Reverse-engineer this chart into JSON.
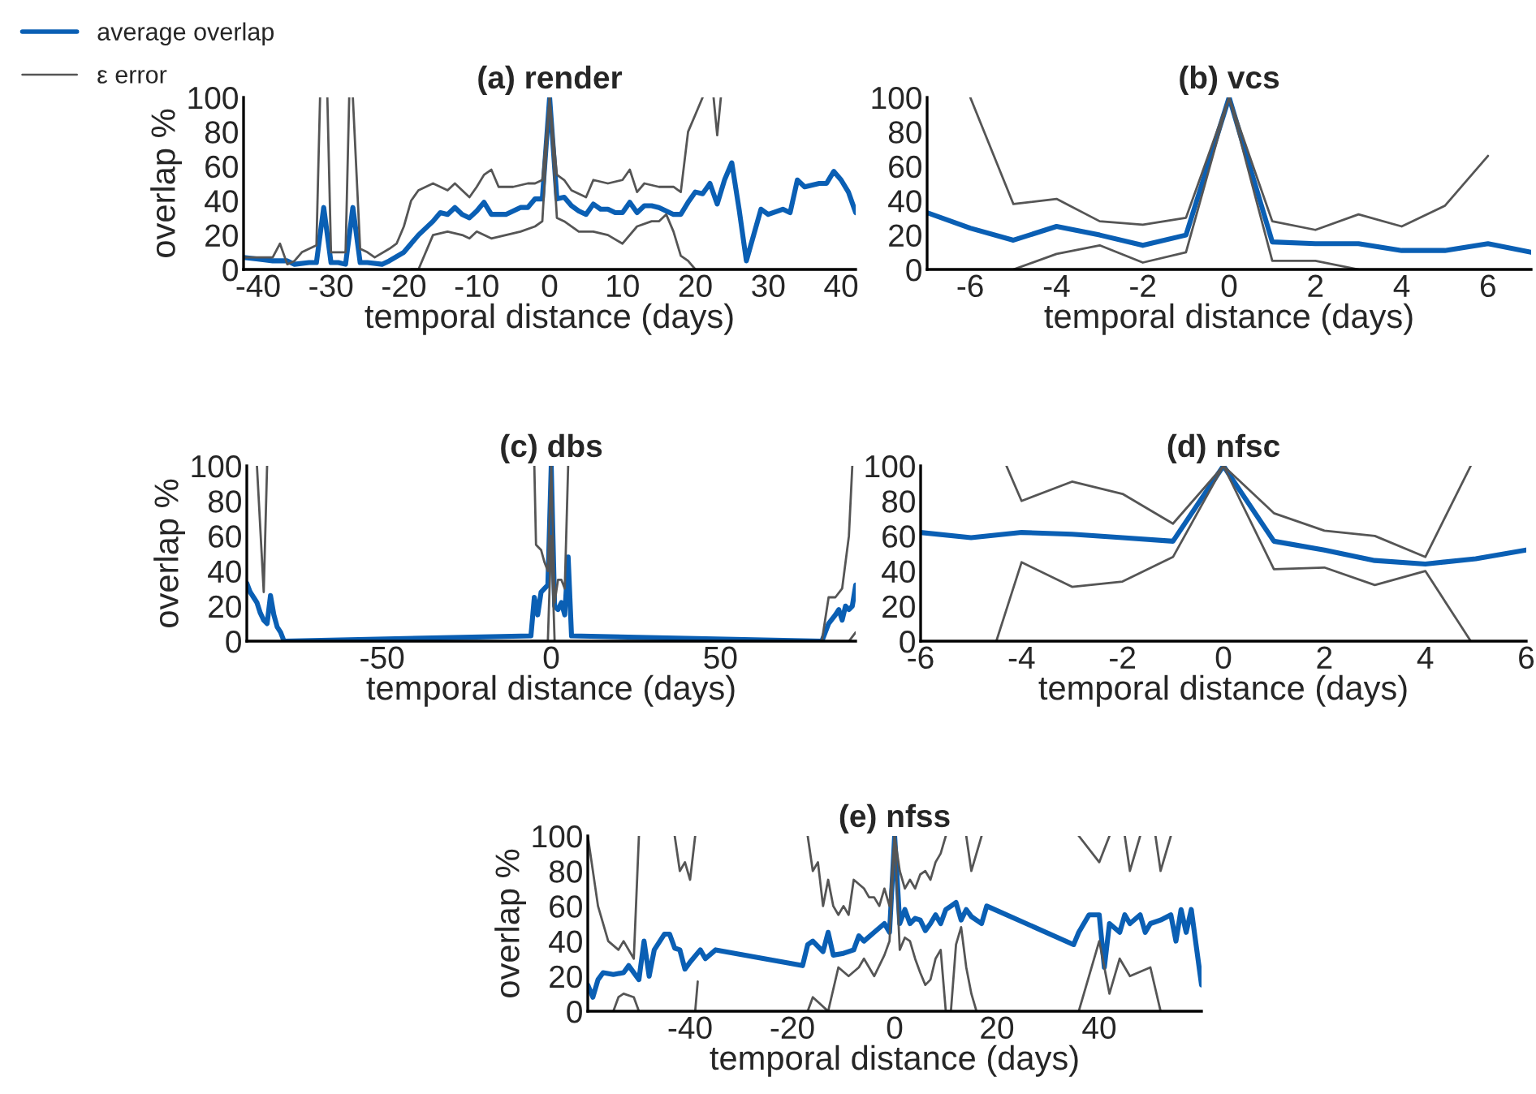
{
  "chart_data": [
    {
      "type": "line",
      "title": "(a) render",
      "xlabel": "temporal distance (days)",
      "ylabel": "overlap %",
      "xlim": [
        -42,
        42
      ],
      "xticks": [
        -40,
        -30,
        -20,
        -10,
        0,
        10,
        20,
        30,
        40
      ],
      "ylim": [
        0,
        100
      ],
      "yticks": [
        0,
        20,
        40,
        60,
        80,
        100
      ],
      "grid": false,
      "legend": "top left",
      "series": [
        {
          "name": "average overlap",
          "color": "#0a5fb4",
          "x": [
            -42,
            -40,
            -38,
            -36,
            -35,
            -33,
            -32,
            -31,
            -30,
            -29,
            -28,
            -27,
            -26,
            -25,
            -23,
            -22,
            -20,
            -18,
            -16,
            -15,
            -14,
            -13,
            -12,
            -11,
            -10,
            -9,
            -8,
            -7,
            -6,
            -5,
            -4,
            -3,
            -2,
            -1,
            0,
            1,
            2,
            3,
            4,
            5,
            6,
            7,
            8,
            9,
            10,
            11,
            12,
            13,
            14,
            15,
            16,
            17,
            18,
            19,
            20,
            21,
            22,
            23,
            24,
            25,
            26,
            27,
            28,
            29,
            30,
            32,
            33,
            34,
            35,
            37,
            38,
            39,
            40,
            41,
            42
          ],
          "values": [
            7,
            6,
            5,
            5,
            3,
            4,
            4,
            36,
            4,
            4,
            3,
            36,
            4,
            4,
            3,
            5,
            10,
            20,
            28,
            33,
            32,
            36,
            32,
            30,
            34,
            39,
            32,
            32,
            32,
            34,
            36,
            36,
            41,
            41,
            100,
            41,
            42,
            37,
            34,
            32,
            38,
            35,
            35,
            33,
            33,
            39,
            33,
            37,
            37,
            36,
            34,
            32,
            32,
            39,
            45,
            44,
            50,
            38,
            52,
            62,
            35,
            5,
            20,
            35,
            32,
            35,
            33,
            52,
            48,
            50,
            50,
            57,
            52,
            45,
            33
          ]
        },
        {
          "name": "ε error",
          "color": "#555555",
          "x": [
            -42,
            -38,
            -37,
            -36,
            -35,
            -34,
            -33,
            -32,
            -31.5,
            -31,
            -30.5,
            -30,
            -29,
            -28,
            -27.5,
            -27.2,
            -27,
            -26,
            -25,
            -24,
            -22,
            -21,
            -20,
            -19,
            -18,
            -16,
            -14,
            -13,
            -11,
            -10,
            -9,
            -8,
            -7,
            -5,
            -3,
            -2,
            -1,
            0,
            1,
            2,
            3,
            5,
            6,
            8,
            10,
            11,
            12,
            13,
            15,
            17,
            18,
            19,
            20,
            21,
            21.5,
            22.5,
            23,
            23.5
          ],
          "values": [
            7,
            7,
            15,
            3,
            5,
            10,
            12,
            14,
            100,
            null,
            100,
            10,
            10,
            10,
            100,
            null,
            100,
            12,
            10,
            7,
            12,
            15,
            25,
            40,
            46,
            50,
            46,
            50,
            42,
            48,
            55,
            58,
            48,
            48,
            50,
            50,
            52,
            100,
            55,
            52,
            46,
            42,
            52,
            50,
            52,
            58,
            45,
            50,
            48,
            48,
            45,
            80,
            90,
            100,
            null,
            100,
            78,
            100
          ]
        },
        {
          "color": "#555555",
          "x": [
            -19,
            -18,
            -16,
            -14,
            -12,
            -11,
            -10,
            -8,
            -6,
            -4,
            -2,
            -1,
            0,
            1,
            2,
            4,
            6,
            8,
            10,
            12,
            14,
            15,
            16,
            17,
            18,
            19,
            20
          ],
          "values": [
            0,
            0,
            20,
            22,
            20,
            18,
            22,
            18,
            20,
            22,
            25,
            28,
            100,
            30,
            28,
            22,
            22,
            20,
            15,
            25,
            28,
            28,
            32,
            22,
            8,
            5,
            0
          ]
        }
      ]
    },
    {
      "type": "line",
      "title": "(b) vcs",
      "xlabel": "temporal distance (days)",
      "xlim": [
        -7,
        7
      ],
      "xticks": [
        -6,
        -4,
        -2,
        0,
        2,
        4,
        6
      ],
      "ylim": [
        0,
        100
      ],
      "yticks": [
        0,
        20,
        40,
        60,
        80,
        100
      ],
      "grid": false,
      "series": [
        {
          "color": "#0a5fb4",
          "x": [
            -7,
            -6,
            -5,
            -4,
            -3,
            -2,
            -1,
            0,
            1,
            2,
            3,
            4,
            5,
            6,
            7
          ],
          "values": [
            33,
            24,
            17,
            25,
            20,
            14,
            20,
            100,
            16,
            15,
            15,
            11,
            11,
            15,
            10
          ]
        },
        {
          "color": "#555555",
          "x": [
            -6,
            -5,
            -4,
            -3,
            -2,
            -1,
            0,
            1,
            2,
            3,
            4,
            5,
            6
          ],
          "values": [
            100,
            38,
            41,
            28,
            26,
            30,
            100,
            28,
            23,
            32,
            25,
            37,
            66
          ]
        },
        {
          "color": "#555555",
          "x": [
            -5,
            -4,
            -3,
            -2,
            -1,
            0,
            1,
            2,
            3
          ],
          "values": [
            0,
            9,
            14,
            4,
            10,
            100,
            5,
            5,
            0
          ]
        }
      ]
    },
    {
      "type": "line",
      "title": "(c) dbs",
      "xlabel": "temporal distance (days)",
      "ylabel": "overlap %",
      "xlim": [
        -90,
        90
      ],
      "xticks": [
        -50,
        0,
        50
      ],
      "ylim": [
        0,
        100
      ],
      "yticks": [
        0,
        20,
        40,
        60,
        80,
        100
      ],
      "grid": false,
      "series": [
        {
          "color": "#0a5fb4",
          "x": [
            -90,
            -89,
            -88,
            -87,
            -86,
            -85,
            -84,
            -83,
            -82,
            -81,
            -80,
            -79,
            -6,
            -5,
            -4,
            -3,
            -2,
            -1,
            0,
            1,
            2,
            3,
            4,
            5,
            6,
            80,
            82,
            84,
            85,
            86,
            87,
            88,
            89,
            90
          ],
          "values": [
            33,
            28,
            25,
            22,
            16,
            12,
            10,
            26,
            15,
            8,
            5,
            0,
            3,
            25,
            15,
            28,
            30,
            32,
            100,
            20,
            18,
            22,
            15,
            48,
            3,
            0,
            10,
            15,
            18,
            12,
            20,
            18,
            20,
            32
          ]
        },
        {
          "color": "#555555",
          "x": [
            -87,
            -85,
            -84,
            -83,
            -5,
            -4.5,
            -3,
            -2,
            -1,
            0,
            1,
            2,
            3,
            4,
            5,
            6,
            80,
            82,
            84,
            86,
            88,
            89
          ],
          "values": [
            100,
            28,
            100,
            null,
            100,
            55,
            52,
            45,
            40,
            100,
            22,
            35,
            35,
            30,
            100,
            null,
            0,
            25,
            25,
            30,
            60,
            100
          ]
        },
        {
          "color": "#555555",
          "x": [
            -6,
            -1,
            0,
            1,
            2,
            88,
            90
          ],
          "values": [
            0,
            0,
            60,
            0,
            null,
            0,
            5
          ]
        }
      ]
    },
    {
      "type": "line",
      "title": "(d) nfsc",
      "xlabel": "temporal distance (days)",
      "xlim": [
        -6,
        6
      ],
      "xticks": [
        -6,
        -4,
        -2,
        0,
        2,
        4,
        6
      ],
      "ylim": [
        0,
        100
      ],
      "yticks": [
        0,
        20,
        40,
        60,
        80,
        100
      ],
      "grid": false,
      "series": [
        {
          "color": "#0a5fb4",
          "x": [
            -6,
            -5,
            -4,
            -3,
            -2,
            -1,
            0,
            1,
            2,
            3,
            4,
            5,
            6
          ],
          "values": [
            62,
            59,
            62,
            61,
            59,
            57,
            100,
            57,
            52,
            46,
            44,
            47,
            52
          ]
        },
        {
          "color": "#555555",
          "x": [
            -4.3,
            -4,
            -3,
            -2,
            -1,
            0,
            1,
            2,
            3,
            4,
            4.9
          ],
          "values": [
            100,
            80,
            91,
            84,
            67,
            100,
            73,
            63,
            60,
            48,
            100
          ]
        },
        {
          "color": "#555555",
          "x": [
            -4.5,
            -4,
            -3,
            -2,
            -1,
            0,
            1,
            2,
            3,
            4,
            4.9
          ],
          "values": [
            0,
            45,
            31,
            34,
            48,
            100,
            41,
            42,
            32,
            40,
            0
          ]
        }
      ]
    },
    {
      "type": "line",
      "title": "(e) nfss",
      "xlabel": "temporal distance (days)",
      "ylabel": "overlap %",
      "xlim": [
        -60,
        60
      ],
      "xticks": [
        -40,
        -20,
        0,
        20,
        40
      ],
      "ylim": [
        0,
        100
      ],
      "yticks": [
        0,
        20,
        40,
        60,
        80,
        100
      ],
      "grid": false,
      "series": [
        {
          "color": "#0a5fb4",
          "x": [
            -60,
            -59,
            -58,
            -57,
            -55,
            -53,
            -52,
            -50,
            -49,
            -48,
            -47,
            -45,
            -44,
            -43,
            -42,
            -41,
            -40,
            -38,
            -37,
            -35,
            -18,
            -17,
            -16,
            -14,
            -13,
            -12,
            -10,
            -8,
            -7,
            -6,
            -4,
            -2,
            -1,
            0,
            1,
            2,
            3,
            4,
            5,
            6,
            7,
            8,
            9,
            10,
            11,
            12,
            13,
            14,
            15,
            16,
            17,
            18,
            35,
            36,
            38,
            40,
            41,
            42,
            44,
            45,
            46,
            48,
            49,
            50,
            52,
            54,
            55,
            56,
            57,
            58,
            60
          ],
          "values": [
            15,
            8,
            18,
            22,
            21,
            22,
            26,
            18,
            40,
            20,
            35,
            44,
            44,
            36,
            35,
            24,
            28,
            35,
            30,
            35,
            26,
            38,
            40,
            34,
            45,
            32,
            33,
            35,
            43,
            40,
            45,
            50,
            45,
            100,
            50,
            58,
            50,
            53,
            52,
            46,
            50,
            55,
            50,
            58,
            60,
            62,
            52,
            58,
            54,
            52,
            50,
            60,
            38,
            45,
            55,
            55,
            25,
            50,
            45,
            55,
            50,
            55,
            45,
            50,
            52,
            55,
            40,
            58,
            45,
            58,
            15
          ]
        },
        {
          "color": "#555555",
          "x": [
            -60,
            -58,
            -56,
            -54,
            -53,
            -51,
            -50,
            -49,
            -43,
            -42,
            -41,
            -40,
            -39,
            -38,
            -17,
            -16,
            -15,
            -14,
            -13,
            -12,
            -11,
            -10,
            -9,
            -8,
            -6,
            -5,
            -4,
            -3,
            -2,
            -1,
            0,
            1,
            2,
            3,
            4,
            5,
            6,
            7,
            8,
            9,
            10,
            11,
            14,
            15,
            16,
            17,
            18,
            36,
            40,
            42,
            43,
            45,
            46,
            48,
            49,
            51,
            52,
            54
          ],
          "values": [
            100,
            60,
            40,
            35,
            40,
            30,
            100,
            null,
            100,
            80,
            85,
            75,
            100,
            null,
            100,
            80,
            85,
            60,
            75,
            60,
            55,
            60,
            55,
            75,
            70,
            65,
            65,
            60,
            70,
            60,
            100,
            80,
            70,
            75,
            70,
            78,
            80,
            75,
            85,
            90,
            100,
            null,
            100,
            80,
            90,
            100,
            null,
            100,
            85,
            100,
            null,
            100,
            80,
            100,
            null,
            100,
            80,
            100
          ]
        },
        {
          "color": "#555555",
          "x": [
            -55,
            -54,
            -53,
            -51,
            -50,
            -49,
            -39,
            -38.5,
            -38,
            -17,
            -16,
            -13,
            -11,
            -9,
            -7,
            -6,
            -4,
            -2,
            -1,
            0,
            1,
            2,
            3,
            4,
            5,
            6,
            7,
            8,
            9,
            10,
            11,
            12,
            13,
            14,
            15,
            16,
            17,
            36,
            40,
            42,
            44,
            46,
            50,
            52
          ],
          "values": [
            0,
            8,
            10,
            8,
            0,
            null,
            0,
            17,
            null,
            0,
            8,
            0,
            25,
            20,
            25,
            30,
            20,
            32,
            40,
            100,
            35,
            42,
            40,
            30,
            22,
            15,
            18,
            30,
            35,
            0,
            0,
            38,
            48,
            25,
            10,
            0,
            null,
            0,
            40,
            10,
            30,
            20,
            25,
            0
          ]
        }
      ]
    }
  ]
}
